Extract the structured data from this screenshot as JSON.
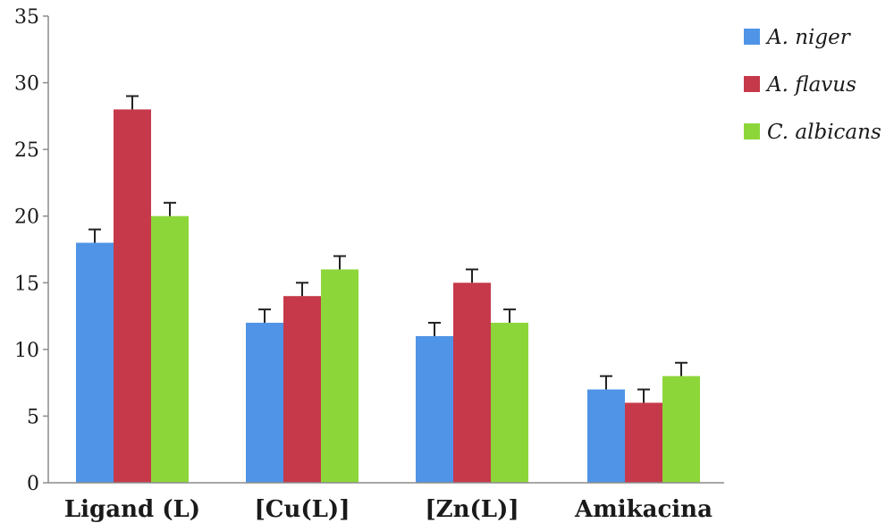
{
  "chart_data": {
    "type": "bar",
    "categories": [
      "Ligand (L)",
      "[Cu(L)]",
      "[Zn(L)]",
      "Amikacina"
    ],
    "series": [
      {
        "name": "A. niger",
        "color": "#4f94e6",
        "values": [
          18,
          12,
          11,
          7
        ],
        "errors": [
          1,
          1,
          1,
          1
        ]
      },
      {
        "name": "A. flavus",
        "color": "#c6394a",
        "values": [
          28,
          14,
          15,
          6
        ],
        "errors": [
          1,
          1,
          1,
          1
        ]
      },
      {
        "name": "C. albicans",
        "color": "#8dd63a",
        "values": [
          20,
          16,
          12,
          8
        ],
        "errors": [
          1,
          1,
          1,
          1
        ]
      }
    ],
    "yticks": [
      0,
      5,
      10,
      15,
      20,
      25,
      30,
      35
    ],
    "ylim": [
      0,
      35
    ],
    "grid": false,
    "legend_position": "top-right",
    "title": "",
    "xlabel": "",
    "ylabel": ""
  }
}
